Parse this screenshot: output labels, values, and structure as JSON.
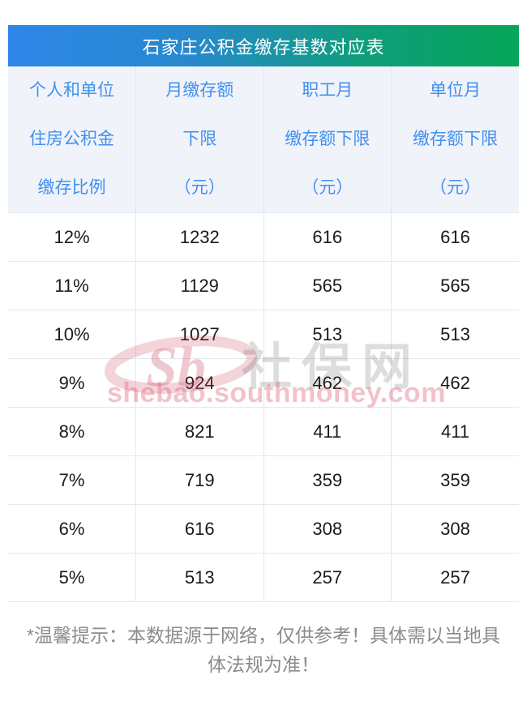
{
  "title": "石家庄公积金缴存基数对应表",
  "table": {
    "headers": [
      {
        "lines": [
          "个人和单位",
          "住房公积金",
          "缴存比例"
        ]
      },
      {
        "lines": [
          "月缴存额",
          "下限",
          "（元）"
        ]
      },
      {
        "lines": [
          "职工月",
          "缴存额下限",
          "（元）"
        ]
      },
      {
        "lines": [
          "单位月",
          "缴存额下限",
          "（元）"
        ]
      }
    ],
    "rows": [
      [
        "12%",
        "1232",
        "616",
        "616"
      ],
      [
        "11%",
        "1129",
        "565",
        "565"
      ],
      [
        "10%",
        "1027",
        "513",
        "513"
      ],
      [
        "9%",
        "924",
        "462",
        "462"
      ],
      [
        "8%",
        "821",
        "411",
        "411"
      ],
      [
        "7%",
        "719",
        "359",
        "359"
      ],
      [
        "6%",
        "616",
        "308",
        "308"
      ],
      [
        "5%",
        "513",
        "257",
        "257"
      ]
    ]
  },
  "watermark": {
    "logo_text": "Sb",
    "site_name": "社保网",
    "site_url": "shebao.southmoney.com"
  },
  "footer_note": "*温馨提示：本数据源于网络，仅供参考！具体需以当地具体法规为准！",
  "colors": {
    "gradient_start": "#2E86E9",
    "gradient_end": "#06A558",
    "header_bg": "#F0F3FA",
    "header_text": "#4090EE",
    "body_text": "#1A1A1A",
    "border": "#E2E8F0",
    "footer_text": "#8B8B8B",
    "watermark_pink": "#E0647D",
    "watermark_gray": "#D9D9D9"
  },
  "chart_data": {
    "type": "table",
    "title": "石家庄公积金缴存基数对应表",
    "columns": [
      "个人和单位住房公积金缴存比例",
      "月缴存额下限（元）",
      "职工月缴存额下限（元）",
      "单位月缴存额下限（元）"
    ],
    "rows": [
      [
        "12%",
        1232,
        616,
        616
      ],
      [
        "11%",
        1129,
        565,
        565
      ],
      [
        "10%",
        1027,
        513,
        513
      ],
      [
        "9%",
        924,
        462,
        462
      ],
      [
        "8%",
        821,
        411,
        411
      ],
      [
        "7%",
        719,
        359,
        359
      ],
      [
        "6%",
        616,
        308,
        308
      ],
      [
        "5%",
        513,
        257,
        257
      ]
    ],
    "footnote": "*温馨提示：本数据源于网络，仅供参考！具体需以当地具体法规为准！"
  }
}
